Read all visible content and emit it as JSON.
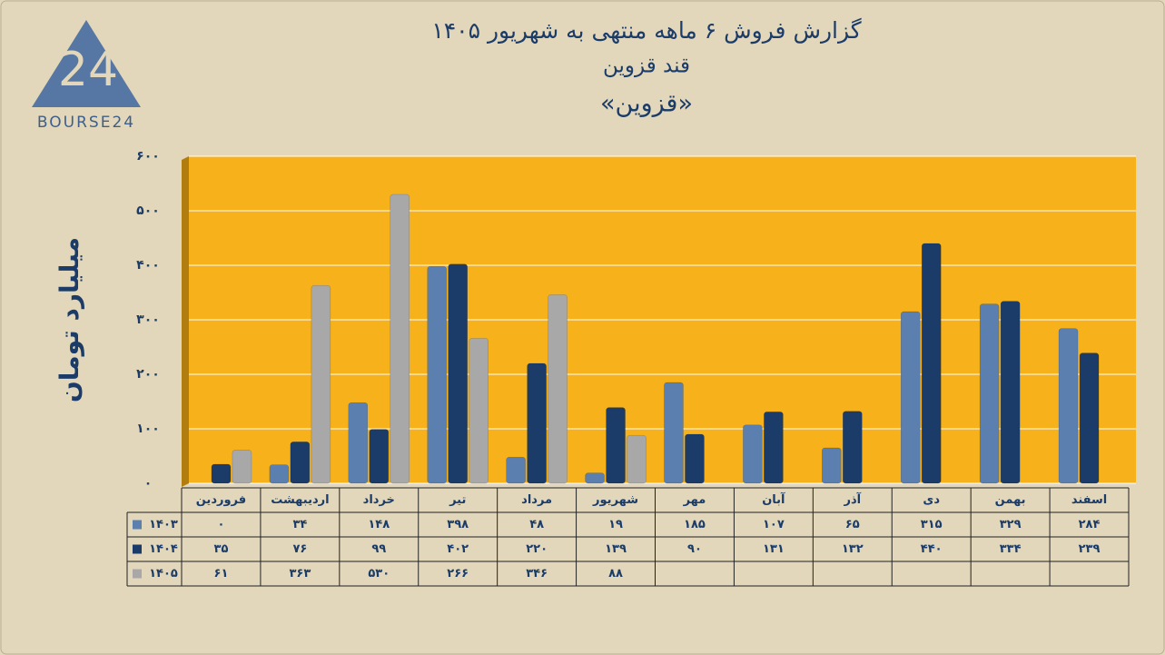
{
  "chart_data": {
    "type": "bar",
    "logo_mark": "24",
    "logo_text": "BOURSE24",
    "title": "گزارش  فروش ۶ ماهه منتهی به شهریور ۱۴۰۵",
    "subtitle": "قند قزوین",
    "company": "«قزوین»",
    "y_label": "میلیارد تومان",
    "categories": [
      "فروردین",
      "اردیبهشت",
      "خرداد",
      "تیر",
      "مرداد",
      "شهریور",
      "مهر",
      "آبان",
      "آذر",
      "دی",
      "بهمن",
      "اسفند"
    ],
    "series": [
      {
        "name": "۱۴۰۳",
        "color": "#5b7fae",
        "values": [
          0,
          34,
          148,
          398,
          48,
          19,
          185,
          107,
          65,
          315,
          329,
          284
        ],
        "value_labels": [
          "۰",
          "۳۴",
          "۱۴۸",
          "۳۹۸",
          "۴۸",
          "۱۹",
          "۱۸۵",
          "۱۰۷",
          "۶۵",
          "۳۱۵",
          "۳۲۹",
          "۲۸۴"
        ]
      },
      {
        "name": "۱۴۰۴",
        "color": "#1b3c69",
        "values": [
          35,
          76,
          99,
          402,
          220,
          139,
          90,
          131,
          132,
          440,
          334,
          239
        ],
        "value_labels": [
          "۳۵",
          "۷۶",
          "۹۹",
          "۴۰۲",
          "۲۲۰",
          "۱۳۹",
          "۹۰",
          "۱۳۱",
          "۱۳۲",
          "۴۴۰",
          "۳۳۴",
          "۲۳۹"
        ]
      },
      {
        "name": "۱۴۰۵",
        "color": "#a8a8a8",
        "values": [
          61,
          363,
          530,
          266,
          346,
          88,
          null,
          null,
          null,
          null,
          null,
          null
        ],
        "value_labels": [
          "۶۱",
          "۳۶۳",
          "۵۳۰",
          "۲۶۶",
          "۳۴۶",
          "۸۸",
          null,
          null,
          null,
          null,
          null,
          null
        ]
      }
    ],
    "ylim": [
      0,
      600
    ],
    "yticks": [
      {
        "value": 0,
        "label": "۰"
      },
      {
        "value": 100,
        "label": "۱۰۰"
      },
      {
        "value": 200,
        "label": "۲۰۰"
      },
      {
        "value": 300,
        "label": "۳۰۰"
      },
      {
        "value": 400,
        "label": "۴۰۰"
      },
      {
        "value": 500,
        "label": "۵۰۰"
      },
      {
        "value": 600,
        "label": "۶۰۰"
      }
    ],
    "grid": true,
    "plot_color": "#f7b21b"
  }
}
